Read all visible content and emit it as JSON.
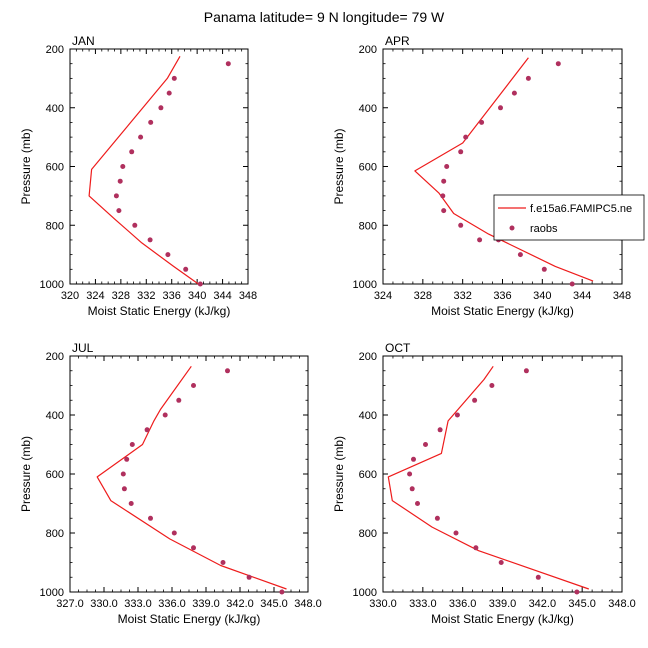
{
  "figure": {
    "title": "Panama  latitude= 9 N longitude= 79 W"
  },
  "colors": {
    "model_line": "#ee1c1c",
    "raobs_marker": "#b0305e",
    "axis": "#000000",
    "background": "#ffffff"
  },
  "legend": {
    "model_label": "f.e15a6.FAMIPC5.ne",
    "obs_label": "raobs"
  },
  "chart_data": [
    {
      "type": "scatter",
      "panel": "JAN",
      "xlabel": "Moist Static Energy (kJ/kg)",
      "ylabel": "Pressure (mb)",
      "xlim": [
        320,
        348
      ],
      "ylim": [
        1000,
        200
      ],
      "y_reversed": true,
      "xticks": [
        320,
        324,
        328,
        332,
        336,
        340,
        344,
        348
      ],
      "xtick_labels": [
        "320",
        "324",
        "328",
        "332",
        "336",
        "340",
        "344",
        "348"
      ],
      "yticks": [
        200,
        400,
        600,
        800,
        1000
      ],
      "ytick_labels": [
        "200",
        "400",
        "600",
        "800",
        "1000"
      ],
      "series": [
        {
          "name": "f.e15a6.FAMIPC5.ne",
          "kind": "line",
          "x": [
            337.3,
            335.3,
            323.4,
            323.0,
            327.1,
            331.3,
            336.3,
            340.2
          ],
          "y": [
            225,
            300,
            610,
            700,
            780,
            860,
            940,
            1000
          ]
        },
        {
          "name": "raobs",
          "kind": "markers",
          "x": [
            344.9,
            336.4,
            335.6,
            334.3,
            332.7,
            331.1,
            329.7,
            328.3,
            327.9,
            327.3,
            327.7,
            330.2,
            332.6,
            335.4,
            338.2,
            340.5
          ],
          "y": [
            250,
            300,
            350,
            400,
            450,
            500,
            550,
            600,
            650,
            700,
            750,
            800,
            850,
            900,
            950,
            1000
          ]
        }
      ]
    },
    {
      "type": "scatter",
      "panel": "APR",
      "xlabel": "Moist Static Energy (kJ/kg)",
      "ylabel": "Pressure (mb)",
      "xlim": [
        324,
        348
      ],
      "ylim": [
        1000,
        200
      ],
      "y_reversed": true,
      "xticks": [
        324,
        328,
        332,
        336,
        340,
        344,
        348
      ],
      "xtick_labels": [
        "324",
        "328",
        "332",
        "336",
        "340",
        "344",
        "348"
      ],
      "yticks": [
        200,
        400,
        600,
        800,
        1000
      ],
      "ytick_labels": [
        "200",
        "400",
        "600",
        "800",
        "1000"
      ],
      "series": [
        {
          "name": "f.e15a6.FAMIPC5.ne",
          "kind": "line",
          "x": [
            338.6,
            332.0,
            327.2,
            329.6,
            331.1,
            334.6,
            341.3,
            345.1
          ],
          "y": [
            230,
            520,
            615,
            690,
            760,
            830,
            940,
            990
          ]
        },
        {
          "name": "raobs",
          "kind": "markers",
          "x": [
            341.6,
            338.6,
            337.2,
            335.8,
            333.9,
            332.3,
            331.8,
            330.4,
            330.1,
            330.0,
            330.1,
            331.8,
            333.7,
            335.6,
            337.8,
            340.2,
            343.0
          ],
          "y": [
            250,
            300,
            350,
            400,
            450,
            500,
            550,
            600,
            650,
            700,
            750,
            800,
            850,
            850,
            900,
            950,
            1000
          ]
        }
      ]
    },
    {
      "type": "scatter",
      "panel": "JUL",
      "xlabel": "Moist Static Energy (kJ/kg)",
      "ylabel": "Pressure (mb)",
      "xlim": [
        327,
        348
      ],
      "ylim": [
        1000,
        200
      ],
      "y_reversed": true,
      "xticks": [
        327,
        330,
        333,
        336,
        339,
        342,
        345,
        348
      ],
      "xtick_labels": [
        "327.0",
        "330.0",
        "333.0",
        "336.0",
        "339.0",
        "342.0",
        "345.0",
        "348.0"
      ],
      "yticks": [
        200,
        400,
        600,
        800,
        1000
      ],
      "ytick_labels": [
        "200",
        "400",
        "600",
        "800",
        "1000"
      ],
      "series": [
        {
          "name": "f.e15a6.FAMIPC5.ne",
          "kind": "line",
          "x": [
            337.7,
            335.0,
            334.4,
            333.4,
            329.4,
            330.6,
            335.8,
            340.3,
            346.1
          ],
          "y": [
            235,
            380,
            420,
            500,
            610,
            690,
            820,
            910,
            990
          ]
        },
        {
          "name": "raobs",
          "kind": "markers",
          "x": [
            340.9,
            337.9,
            336.6,
            335.4,
            333.8,
            332.5,
            332.0,
            331.7,
            331.8,
            332.4,
            334.1,
            336.2,
            337.9,
            340.5,
            342.8,
            345.7
          ],
          "y": [
            250,
            300,
            350,
            400,
            450,
            500,
            550,
            600,
            650,
            700,
            750,
            800,
            850,
            900,
            950,
            1000
          ]
        }
      ]
    },
    {
      "type": "scatter",
      "panel": "OCT",
      "xlabel": "Moist Static Energy (kJ/kg)",
      "ylabel": "Pressure (mb)",
      "xlim": [
        330,
        348
      ],
      "ylim": [
        1000,
        200
      ],
      "y_reversed": true,
      "xticks": [
        330,
        333,
        336,
        339,
        342,
        345,
        348
      ],
      "xtick_labels": [
        "330.0",
        "333.0",
        "336.0",
        "339.0",
        "342.0",
        "345.0",
        "348.0"
      ],
      "yticks": [
        200,
        400,
        600,
        800,
        1000
      ],
      "ytick_labels": [
        "200",
        "400",
        "600",
        "800",
        "1000"
      ],
      "series": [
        {
          "name": "f.e15a6.FAMIPC5.ne",
          "kind": "line",
          "x": [
            338.3,
            337.6,
            334.9,
            334.4,
            330.4,
            330.7,
            333.7,
            337.2,
            345.5
          ],
          "y": [
            235,
            280,
            420,
            530,
            610,
            690,
            780,
            860,
            990
          ]
        },
        {
          "name": "raobs",
          "kind": "markers",
          "x": [
            340.8,
            338.2,
            336.9,
            335.6,
            334.3,
            333.2,
            332.3,
            332.0,
            332.2,
            332.6,
            334.1,
            335.5,
            337.0,
            338.9,
            341.7,
            344.6
          ],
          "y": [
            250,
            300,
            350,
            400,
            450,
            500,
            550,
            600,
            650,
            700,
            750,
            800,
            850,
            900,
            950,
            1000
          ]
        }
      ]
    }
  ]
}
